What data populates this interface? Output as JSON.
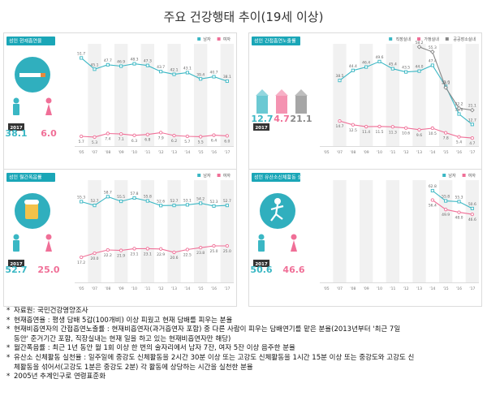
{
  "title": "주요 건강행태 추이(19세 이상)",
  "years": [
    "'05",
    "'07",
    "'08",
    "'09",
    "'10",
    "'11",
    "'12",
    "'13",
    "'14",
    "'15",
    "'16",
    "'17"
  ],
  "colors": {
    "male": "#3ab7c4",
    "female": "#f06f97",
    "public": "#888888",
    "tag": "#1aa6b7",
    "dark": "#333333"
  },
  "chart_data": [
    {
      "type": "line",
      "tag": "성인 현재흡연율",
      "categories": [
        "'05",
        "'07",
        "'08",
        "'09",
        "'10",
        "'11",
        "'12",
        "'13",
        "'14",
        "'15",
        "'16",
        "'17"
      ],
      "ylim": [
        0,
        60
      ],
      "series": [
        {
          "name": "남자",
          "key": "male",
          "values": [
            51.7,
            45.1,
            47.7,
            46.9,
            48.3,
            47.3,
            43.7,
            42.1,
            43.1,
            39.4,
            40.7,
            38.1
          ]
        },
        {
          "name": "여자",
          "key": "female",
          "values": [
            5.7,
            5.3,
            7.4,
            7.1,
            6.3,
            6.8,
            7.9,
            6.2,
            5.7,
            5.5,
            6.4,
            6.0
          ]
        }
      ],
      "highlight": {
        "year": "2017",
        "male": "38.1",
        "female": "6.0"
      }
    },
    {
      "type": "line",
      "tag": "성인 간접흡연노출률",
      "categories": [
        "'05",
        "'07",
        "'08",
        "'09",
        "'10",
        "'11",
        "'12",
        "'13",
        "'14",
        "'15",
        "'16",
        "'17"
      ],
      "ylim": [
        0,
        60
      ],
      "series": [
        {
          "name": "직장실내",
          "key": "male",
          "values": [
            null,
            38.5,
            44.4,
            46.4,
            49.6,
            45.4,
            43.5,
            44.0,
            47.4,
            35.0,
            18.8,
            12.7
          ]
        },
        {
          "name": "가정실내",
          "key": "female",
          "values": [
            null,
            14.7,
            12.5,
            11.4,
            11.5,
            11.3,
            10.6,
            9.6,
            10.5,
            7.8,
            5.4,
            4.7
          ]
        },
        {
          "name": "공공장소실내",
          "key": "public",
          "values": [
            null,
            null,
            null,
            null,
            null,
            null,
            null,
            58.2,
            55.3,
            34.3,
            22.2,
            21.1
          ]
        }
      ],
      "highlight": {
        "year": "2017",
        "male": "12.7",
        "female": "4.7",
        "public": "21.1"
      }
    },
    {
      "type": "line",
      "tag": "성인 월간폭음률",
      "categories": [
        "'05",
        "'07",
        "'08",
        "'09",
        "'10",
        "'11",
        "'12",
        "'13",
        "'14",
        "'15",
        "'16",
        "'17"
      ],
      "ylim": [
        0,
        70
      ],
      "series": [
        {
          "name": "남자",
          "key": "male",
          "values": [
            55.3,
            52.7,
            58.7,
            55.5,
            57.8,
            55.8,
            52.6,
            52.7,
            53.1,
            54.2,
            52.3,
            52.7
          ]
        },
        {
          "name": "여자",
          "key": "female",
          "values": [
            17.2,
            20.0,
            22.2,
            21.9,
            23.1,
            23.1,
            22.9,
            20.6,
            22.5,
            23.8,
            25.0,
            25.0
          ]
        }
      ],
      "highlight": {
        "year": "2017",
        "male": "52.7",
        "female": "25.0"
      }
    },
    {
      "type": "line",
      "tag": "성인 유산소신체활동 실천율",
      "categories": [
        "'05",
        "'07",
        "'08",
        "'09",
        "'10",
        "'11",
        "'12",
        "'13",
        "'14",
        "'15",
        "'16",
        "'17"
      ],
      "ylim": [
        0,
        70
      ],
      "series": [
        {
          "name": "남자",
          "key": "male",
          "values": [
            null,
            null,
            null,
            null,
            null,
            null,
            null,
            null,
            62.8,
            55.8,
            55.3,
            50.6
          ]
        },
        {
          "name": "여자",
          "key": "female",
          "values": [
            null,
            null,
            null,
            null,
            null,
            null,
            null,
            null,
            56.4,
            49.9,
            48.0,
            46.6
          ]
        }
      ],
      "highlight": {
        "year": "2017",
        "male": "50.6",
        "female": "46.6"
      }
    }
  ],
  "footnotes": [
    "자료원: 국민건강영양조사",
    "현재흡연율 : 평생 담배 5갑(100개비) 이상 피웠고 현재 담배를 피우는 분율",
    "현재비흡연자의 간접흡연노출률 : 현재비흡연자(과거흡연자 포함) 중 다른 사람이 피우는 담배연기를 맡은 분율(2013년부터 '최근 7일",
    "동안' 준거기간 포함, 직장실내는 현재 일을 하고 있는 현재비흡연자만 해당)",
    "월간폭음률 : 최근 1년 동안 월 1회 이상 한 번의 술자리에서 남자 7잔, 여자 5잔 이상 음주한 분율",
    "유산소 신체활동 실천율 : 일주일에 중강도 신체활동을 2시간 30분 이상 또는 고강도 신체활동을 1시간 15분 이상 또는 중강도와 고강도 신",
    "체활동을 섞어서(고강도 1분은 중강도 2분) 각 활동에 상당하는 시간을 실천한 분율",
    "2005년 추계인구로 연령표준화"
  ]
}
